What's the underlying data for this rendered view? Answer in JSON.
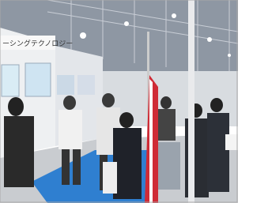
{
  "signs": {
    "banner": "ーシングテクノロジー"
  }
}
